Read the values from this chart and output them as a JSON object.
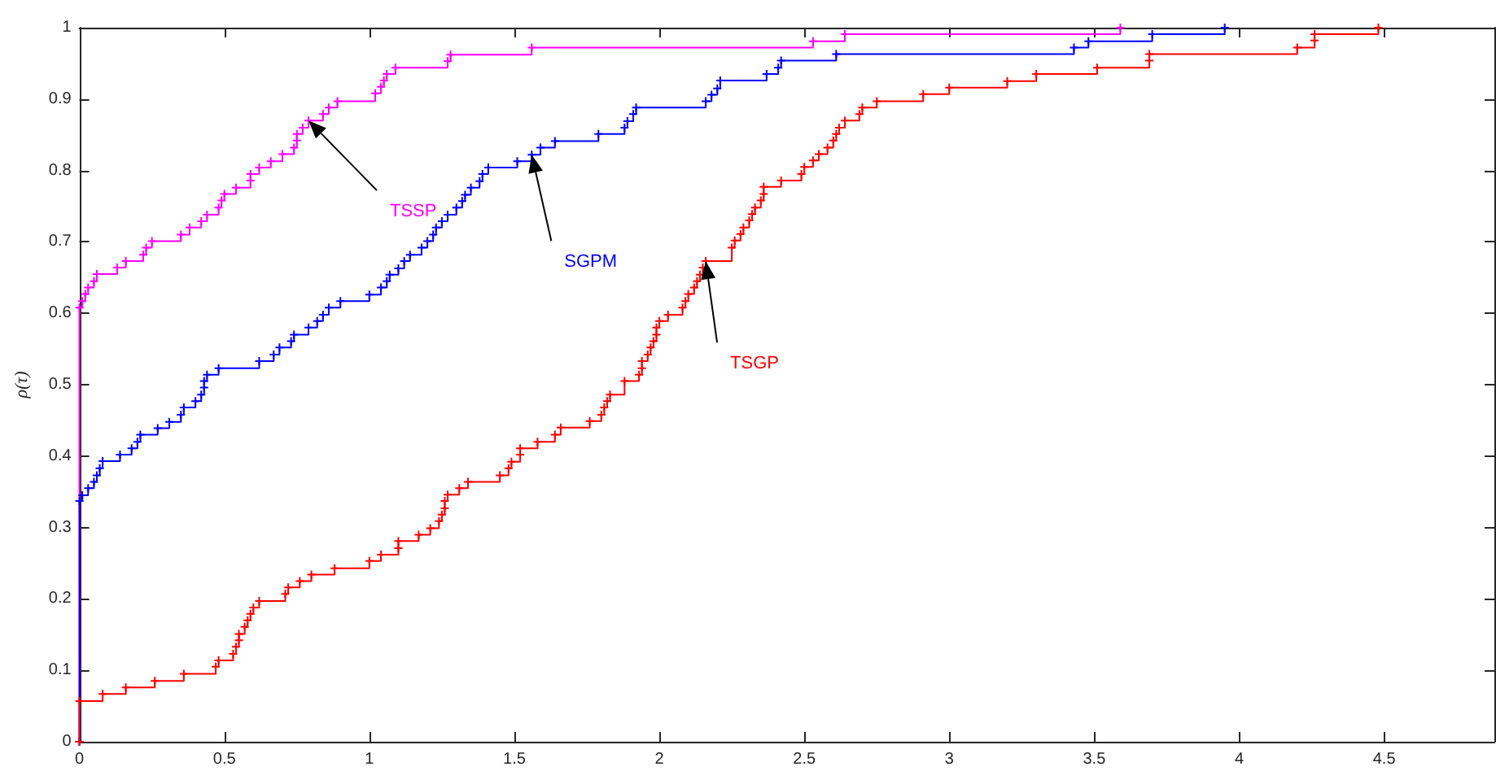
{
  "chart_data": {
    "type": "step",
    "ylabel": "ρ(τ)",
    "xlim": [
      0,
      4.88
    ],
    "ylim": [
      0,
      1
    ],
    "xticks": [
      0,
      0.5,
      1,
      1.5,
      2,
      2.5,
      3,
      3.5,
      4,
      4.5
    ],
    "yticks": [
      0,
      0.1,
      0.2,
      0.3,
      0.4,
      0.5,
      0.6,
      0.7,
      0.8,
      0.9,
      1
    ],
    "grid": false,
    "marker": "cross",
    "line_style": "solid",
    "series": [
      {
        "name": "TSSP",
        "color": "#ff00ff",
        "x": [
          0,
          0,
          0.01,
          0.02,
          0.03,
          0.05,
          0.06,
          0.13,
          0.16,
          0.22,
          0.23,
          0.25,
          0.35,
          0.38,
          0.42,
          0.44,
          0.48,
          0.49,
          0.5,
          0.54,
          0.59,
          0.59,
          0.62,
          0.66,
          0.7,
          0.74,
          0.75,
          0.75,
          0.77,
          0.79,
          0.84,
          0.86,
          0.89,
          1.02,
          1.04,
          1.05,
          1.06,
          1.09,
          1.27,
          1.28,
          1.56,
          2.53,
          2.64,
          3.59
        ],
        "values": [
          0,
          0.608,
          0.617,
          0.627,
          0.636,
          0.645,
          0.655,
          0.664,
          0.673,
          0.682,
          0.692,
          0.701,
          0.71,
          0.72,
          0.729,
          0.738,
          0.748,
          0.758,
          0.767,
          0.776,
          0.786,
          0.795,
          0.804,
          0.813,
          0.823,
          0.832,
          0.842,
          0.851,
          0.86,
          0.87,
          0.879,
          0.888,
          0.897,
          0.908,
          0.917,
          0.926,
          0.935,
          0.944,
          0.953,
          0.962,
          0.972,
          0.981,
          0.991,
          1
        ]
      },
      {
        "name": "SGPM",
        "color": "#0000ff",
        "x": [
          0,
          0,
          0.01,
          0.03,
          0.05,
          0.06,
          0.07,
          0.08,
          0.14,
          0.18,
          0.2,
          0.21,
          0.27,
          0.31,
          0.35,
          0.36,
          0.4,
          0.42,
          0.43,
          0.43,
          0.44,
          0.48,
          0.62,
          0.67,
          0.69,
          0.73,
          0.74,
          0.79,
          0.82,
          0.84,
          0.86,
          0.9,
          1,
          1.04,
          1.06,
          1.07,
          1.1,
          1.12,
          1.14,
          1.18,
          1.2,
          1.22,
          1.23,
          1.25,
          1.27,
          1.3,
          1.32,
          1.33,
          1.35,
          1.38,
          1.39,
          1.41,
          1.51,
          1.56,
          1.59,
          1.64,
          1.79,
          1.88,
          1.89,
          1.91,
          1.92,
          2.16,
          2.18,
          2.2,
          2.21,
          2.37,
          2.41,
          2.42,
          2.61,
          3.43,
          3.48,
          3.7,
          3.95
        ],
        "values": [
          0,
          0.337,
          0.345,
          0.355,
          0.364,
          0.373,
          0.383,
          0.393,
          0.402,
          0.411,
          0.42,
          0.43,
          0.439,
          0.448,
          0.458,
          0.468,
          0.477,
          0.486,
          0.496,
          0.505,
          0.514,
          0.523,
          0.533,
          0.542,
          0.552,
          0.561,
          0.57,
          0.58,
          0.589,
          0.598,
          0.608,
          0.617,
          0.626,
          0.636,
          0.645,
          0.654,
          0.663,
          0.673,
          0.682,
          0.692,
          0.701,
          0.71,
          0.72,
          0.729,
          0.738,
          0.748,
          0.757,
          0.766,
          0.776,
          0.785,
          0.795,
          0.804,
          0.813,
          0.822,
          0.832,
          0.841,
          0.851,
          0.86,
          0.869,
          0.879,
          0.888,
          0.897,
          0.906,
          0.915,
          0.926,
          0.935,
          0.944,
          0.954,
          0.963,
          0.972,
          0.981,
          0.991,
          1
        ]
      },
      {
        "name": "TSGP",
        "color": "#ff0000",
        "x": [
          0,
          0,
          0.08,
          0.16,
          0.26,
          0.36,
          0.47,
          0.48,
          0.53,
          0.54,
          0.55,
          0.55,
          0.57,
          0.58,
          0.59,
          0.6,
          0.62,
          0.71,
          0.72,
          0.76,
          0.8,
          0.88,
          1,
          1.04,
          1.1,
          1.1,
          1.17,
          1.21,
          1.24,
          1.25,
          1.26,
          1.26,
          1.27,
          1.31,
          1.34,
          1.45,
          1.48,
          1.49,
          1.52,
          1.52,
          1.58,
          1.64,
          1.66,
          1.76,
          1.8,
          1.81,
          1.82,
          1.83,
          1.88,
          1.93,
          1.94,
          1.94,
          1.96,
          1.97,
          1.98,
          1.99,
          1.99,
          2,
          2.03,
          2.08,
          2.09,
          2.1,
          2.12,
          2.13,
          2.14,
          2.15,
          2.16,
          2.25,
          2.26,
          2.28,
          2.29,
          2.31,
          2.32,
          2.33,
          2.35,
          2.36,
          2.36,
          2.42,
          2.49,
          2.5,
          2.53,
          2.55,
          2.58,
          2.6,
          2.61,
          2.62,
          2.64,
          2.69,
          2.7,
          2.75,
          2.91,
          3,
          3.2,
          3.3,
          3.51,
          3.69,
          3.69,
          4.2,
          4.26,
          4.26,
          4.48
        ],
        "values": [
          0,
          0.057,
          0.067,
          0.076,
          0.085,
          0.095,
          0.105,
          0.114,
          0.123,
          0.133,
          0.142,
          0.151,
          0.161,
          0.17,
          0.179,
          0.188,
          0.197,
          0.207,
          0.216,
          0.225,
          0.234,
          0.243,
          0.253,
          0.262,
          0.271,
          0.281,
          0.29,
          0.299,
          0.309,
          0.318,
          0.327,
          0.337,
          0.346,
          0.355,
          0.364,
          0.373,
          0.383,
          0.392,
          0.402,
          0.411,
          0.42,
          0.43,
          0.44,
          0.449,
          0.458,
          0.468,
          0.477,
          0.486,
          0.505,
          0.514,
          0.523,
          0.533,
          0.542,
          0.552,
          0.561,
          0.57,
          0.58,
          0.589,
          0.598,
          0.608,
          0.617,
          0.627,
          0.636,
          0.645,
          0.654,
          0.664,
          0.673,
          0.692,
          0.702,
          0.711,
          0.72,
          0.73,
          0.739,
          0.748,
          0.758,
          0.767,
          0.777,
          0.786,
          0.795,
          0.805,
          0.814,
          0.823,
          0.832,
          0.842,
          0.851,
          0.86,
          0.87,
          0.879,
          0.888,
          0.897,
          0.907,
          0.916,
          0.925,
          0.935,
          0.944,
          0.954,
          0.963,
          0.972,
          0.982,
          0.991,
          1
        ]
      }
    ]
  }
}
